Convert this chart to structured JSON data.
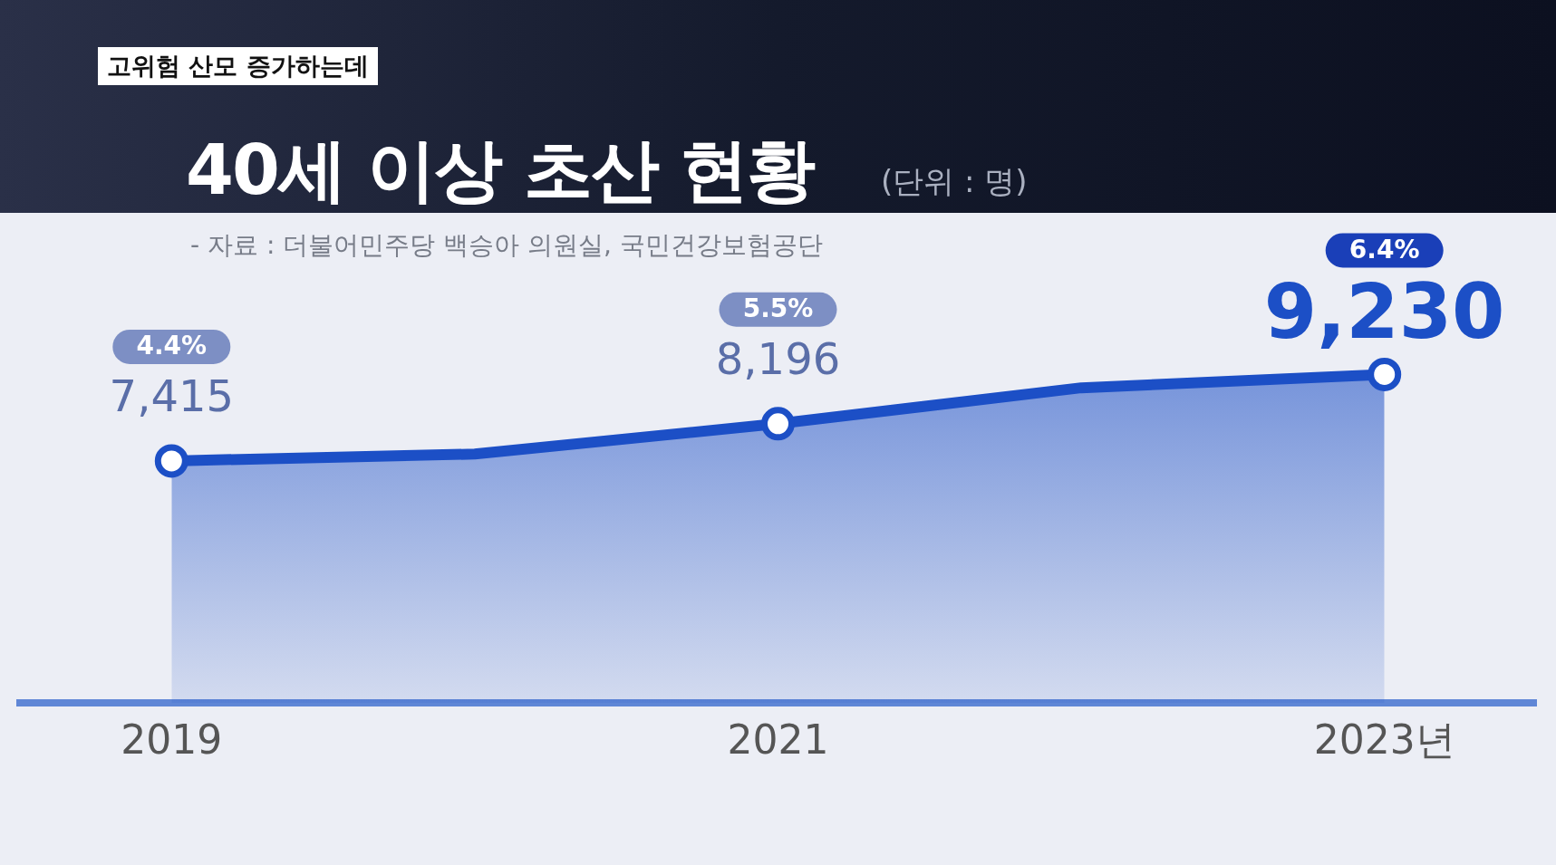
{
  "chart_data": {
    "type": "area",
    "title": "40세 이상 초산 현황",
    "subtitle": "(단위 : 명)",
    "annotations": [
      "고위험 산모 증가하는데",
      "- 자료 : 더불어민주당 백승아 의원실, 국민건강보험공단",
      "4.4%",
      "5.5%",
      "6.4%"
    ],
    "categories": [
      "2019",
      null,
      "2021",
      null,
      "2023년"
    ],
    "series": [
      {
        "color": "#1c4fc6",
        "values": [
          7415,
          7560,
          8196,
          8950,
          9230
        ],
        "value_labels": [
          "7,415",
          null,
          "8,196",
          null,
          "9,230"
        ]
      }
    ],
    "grid": false,
    "legend": false,
    "marker": "circle",
    "tick_labels": "x"
  }
}
